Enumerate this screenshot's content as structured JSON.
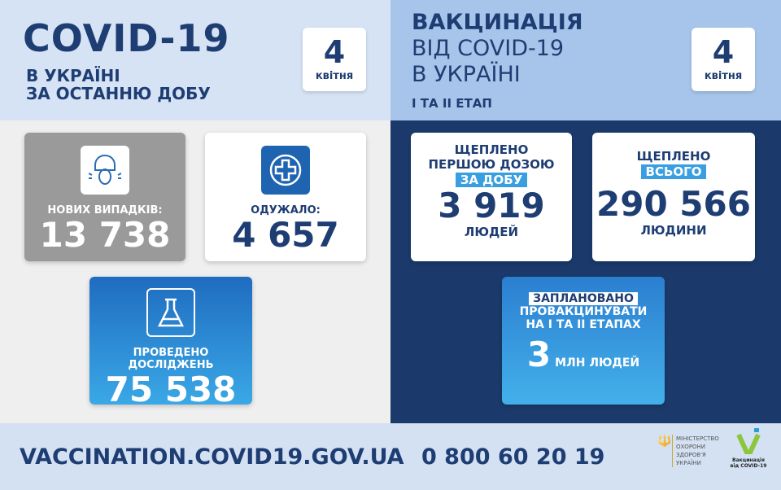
{
  "left_header": {
    "title": "COVID-19",
    "line1": "В УКРАЇНІ",
    "line2": "ЗА ОСТАННЮ ДОБУ",
    "day": "4",
    "month": "квітня"
  },
  "right_header": {
    "line1": "ВАКЦИНАЦІЯ",
    "line2": "ВІД COVID-19",
    "line3": "В УКРАЇНІ",
    "stage": "I ТА II ЕТАП",
    "day": "4",
    "month": "квітня"
  },
  "new_cases": {
    "label": "НОВИХ ВИПАДКІВ:",
    "value": "13 738",
    "icon": "sneezing-person-icon"
  },
  "recovered": {
    "label": "ОДУЖАЛО:",
    "value": "4 657",
    "icon": "medical-cross-icon"
  },
  "tests": {
    "label": "ПРОВЕДЕНО ДОСЛІДЖЕНЬ",
    "value": "75 538",
    "icon": "flask-icon"
  },
  "first_dose": {
    "line1": "ЩЕПЛЕНО",
    "line2": "ПЕРШОЮ ДОЗОЮ",
    "highlight": "ЗА ДОБУ",
    "value": "3 919",
    "unit": "ЛЮДЕЙ"
  },
  "total": {
    "line1": "ЩЕПЛЕНО",
    "highlight": "ВСЬОГО",
    "value": "290 566",
    "unit": "ЛЮДИНИ"
  },
  "planned": {
    "highlight": "ЗАПЛАНОВАНО",
    "line1": "ПРОВАКЦИНУВАТИ",
    "line2": "НА I ТА II ЕТАПАХ",
    "value": "3",
    "unit": "МЛН ЛЮДЕЙ"
  },
  "footer": {
    "website": "VACCINATION.COVID19.GOV.UA",
    "phone": "0 800 60 20 19",
    "ministry": [
      "МІНІСТЕРСТВО",
      "ОХОРОНИ",
      "ЗДОРОВ'Я",
      "УКРАЇНИ"
    ],
    "vacc_logo_line1": "Вакцинація",
    "vacc_logo_line2": "від COVID-19"
  },
  "colors": {
    "navy": "#1e3d73",
    "dark_panel": "#1b3a6b",
    "accent": "#3a9fe0",
    "grey_card": "#9a9a9a"
  }
}
